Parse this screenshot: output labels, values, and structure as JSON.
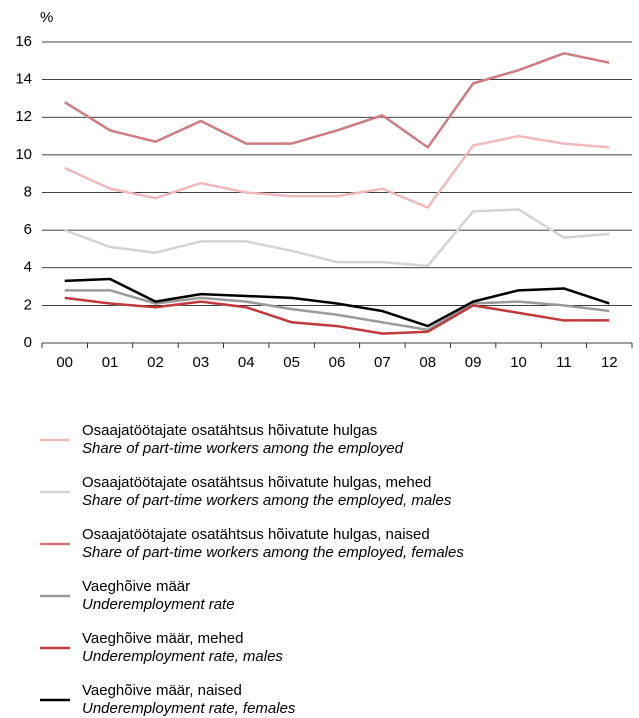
{
  "chart_data": {
    "type": "line",
    "y_label": "%",
    "categories": [
      "00",
      "01",
      "02",
      "03",
      "04",
      "05",
      "06",
      "07",
      "08",
      "09",
      "10",
      "11",
      "12"
    ],
    "ylim": [
      0,
      16
    ],
    "yticks": [
      0,
      2,
      4,
      6,
      8,
      10,
      12,
      14,
      16
    ],
    "grid": true,
    "series": [
      {
        "name": "Osaajatöötajate osatähtsus hõivatute hulgas",
        "name_en": "Share of part-time workers among the employed",
        "color": "#f0b9bb",
        "values": [
          9.3,
          8.2,
          7.7,
          8.5,
          8.0,
          7.8,
          7.8,
          8.2,
          7.2,
          10.5,
          11.0,
          10.6,
          10.4
        ]
      },
      {
        "name": "Osaajatöötajate osatähtsus hõivatute hulgas, mehed",
        "name_en": "Share of part-time workers among the employed, males",
        "color": "#d3d3d3",
        "values": [
          6.0,
          5.1,
          4.8,
          5.4,
          5.4,
          4.9,
          4.3,
          4.3,
          4.1,
          7.0,
          7.1,
          5.6,
          5.8
        ]
      },
      {
        "name": "Osaajatöötajate osatähtsus hõivatute hulgas, naised",
        "name_en": "Share of part-time workers among the employed, females",
        "color": "#cf7b82",
        "values": [
          12.8,
          11.3,
          10.7,
          11.8,
          10.6,
          10.6,
          11.3,
          12.1,
          10.4,
          13.8,
          14.5,
          15.4,
          14.9
        ]
      },
      {
        "name": "Vaeghõive määr",
        "name_en": "Underemployment rate",
        "color": "#9a9a9a",
        "values": [
          2.8,
          2.8,
          2.1,
          2.4,
          2.2,
          1.8,
          1.5,
          1.1,
          0.7,
          2.1,
          2.2,
          2.0,
          1.7
        ]
      },
      {
        "name": "Vaeghõive määr, mehed",
        "name_en": "Underemployment rate, males",
        "color": "#c0393b",
        "values": [
          2.4,
          2.1,
          1.9,
          2.2,
          1.9,
          1.1,
          0.9,
          0.5,
          0.6,
          2.0,
          1.6,
          1.2,
          1.2
        ]
      },
      {
        "name": "Vaeghõive määr, naised",
        "name_en": "Underemployment rate, females",
        "color": "#000000",
        "values": [
          3.3,
          3.4,
          2.2,
          2.6,
          2.5,
          2.4,
          2.1,
          1.7,
          0.9,
          2.2,
          2.8,
          2.9,
          2.1
        ]
      }
    ]
  }
}
